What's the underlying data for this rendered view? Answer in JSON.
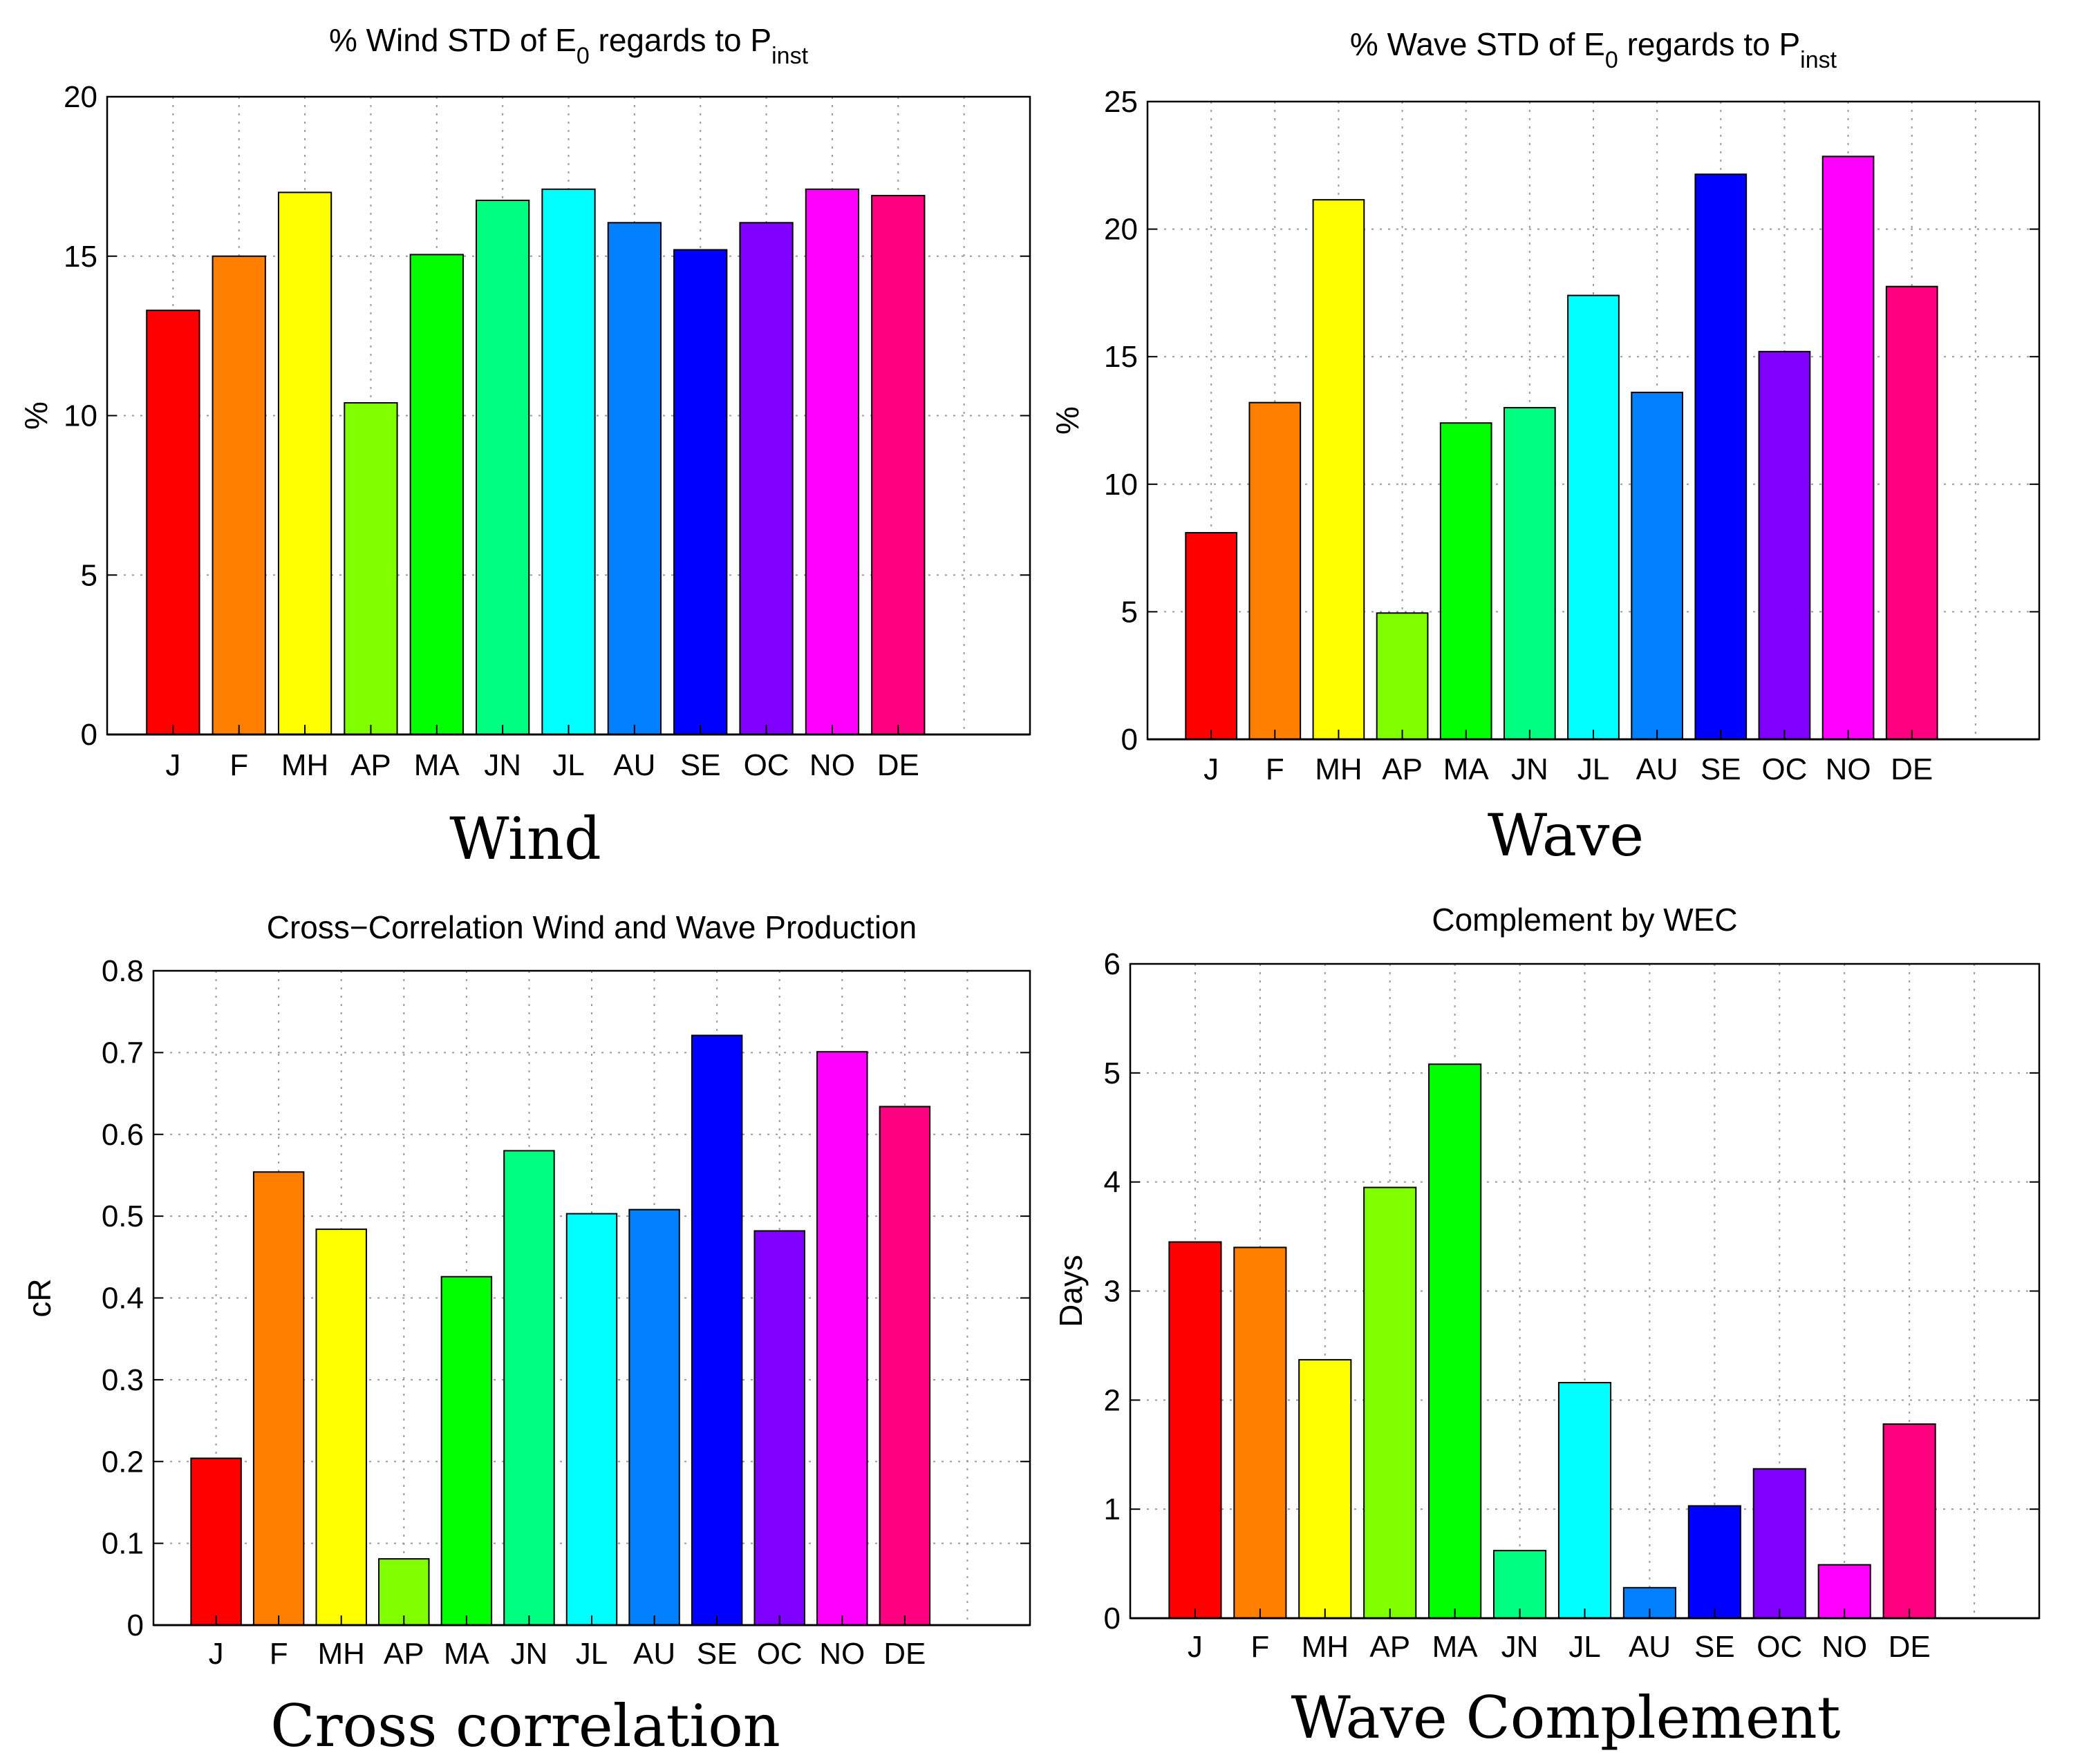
{
  "colors": [
    "#ff0000",
    "#ff7f00",
    "#ffff00",
    "#80ff00",
    "#00ff00",
    "#00ff80",
    "#00ffff",
    "#0080ff",
    "#0000ff",
    "#8000ff",
    "#ff00ff",
    "#ff0080"
  ],
  "chart_data": [
    {
      "type": "bar",
      "title_main": "% Wind STD of E",
      "title_sub1": "0",
      "title_mid": " regards to P",
      "title_sub2": "inst",
      "ylabel": "%",
      "caption": "Wind",
      "categories": [
        "J",
        "F",
        "MH",
        "AP",
        "MA",
        "JN",
        "JL",
        "AU",
        "SE",
        "OC",
        "NO",
        "DE"
      ],
      "values": [
        13.3,
        15.0,
        17.0,
        10.4,
        15.05,
        16.75,
        17.1,
        16.05,
        15.2,
        16.05,
        17.1,
        16.9
      ],
      "ylim": [
        0,
        20
      ],
      "yticks": [
        "0",
        "5",
        "10",
        "15",
        "20"
      ],
      "xlim": [
        0,
        14
      ],
      "grid": true
    },
    {
      "type": "bar",
      "title_main": "% Wave STD of E",
      "title_sub1": "0",
      "title_mid": " regards to P",
      "title_sub2": "inst",
      "ylabel": "%",
      "caption": "Wave",
      "categories": [
        "J",
        "F",
        "MH",
        "AP",
        "MA",
        "JN",
        "JL",
        "AU",
        "SE",
        "OC",
        "NO",
        "DE"
      ],
      "values": [
        8.1,
        13.2,
        21.15,
        4.95,
        12.4,
        13.0,
        17.4,
        13.6,
        22.15,
        15.2,
        22.85,
        17.75
      ],
      "ylim": [
        0,
        25
      ],
      "yticks": [
        "0",
        "5",
        "10",
        "15",
        "20",
        "25"
      ],
      "xlim": [
        0,
        14
      ],
      "grid": true
    },
    {
      "type": "bar",
      "title_main": "Cross−Correlation Wind and Wave Production",
      "ylabel": "cR",
      "caption": "Cross correlation",
      "categories": [
        "J",
        "F",
        "MH",
        "AP",
        "MA",
        "JN",
        "JL",
        "AU",
        "SE",
        "OC",
        "NO",
        "DE"
      ],
      "values": [
        0.204,
        0.554,
        0.484,
        0.081,
        0.426,
        0.58,
        0.503,
        0.508,
        0.721,
        0.482,
        0.701,
        0.634
      ],
      "ylim": [
        0,
        0.8
      ],
      "yticks": [
        "0",
        "0.1",
        "0.2",
        "0.3",
        "0.4",
        "0.5",
        "0.6",
        "0.7",
        "0.8"
      ],
      "xlim": [
        0,
        14
      ],
      "grid": true
    },
    {
      "type": "bar",
      "title_main": "Complement by WEC",
      "ylabel": "Days",
      "caption": "Wave Complement",
      "categories": [
        "J",
        "F",
        "MH",
        "AP",
        "MA",
        "JN",
        "JL",
        "AU",
        "SE",
        "OC",
        "NO",
        "DE"
      ],
      "values": [
        3.45,
        3.4,
        2.37,
        3.95,
        5.08,
        0.62,
        2.16,
        0.28,
        1.03,
        1.37,
        0.49,
        1.78
      ],
      "ylim": [
        0,
        6
      ],
      "yticks": [
        "0",
        "1",
        "2",
        "3",
        "4",
        "5",
        "6"
      ],
      "xlim": [
        0,
        14
      ],
      "grid": true
    }
  ]
}
